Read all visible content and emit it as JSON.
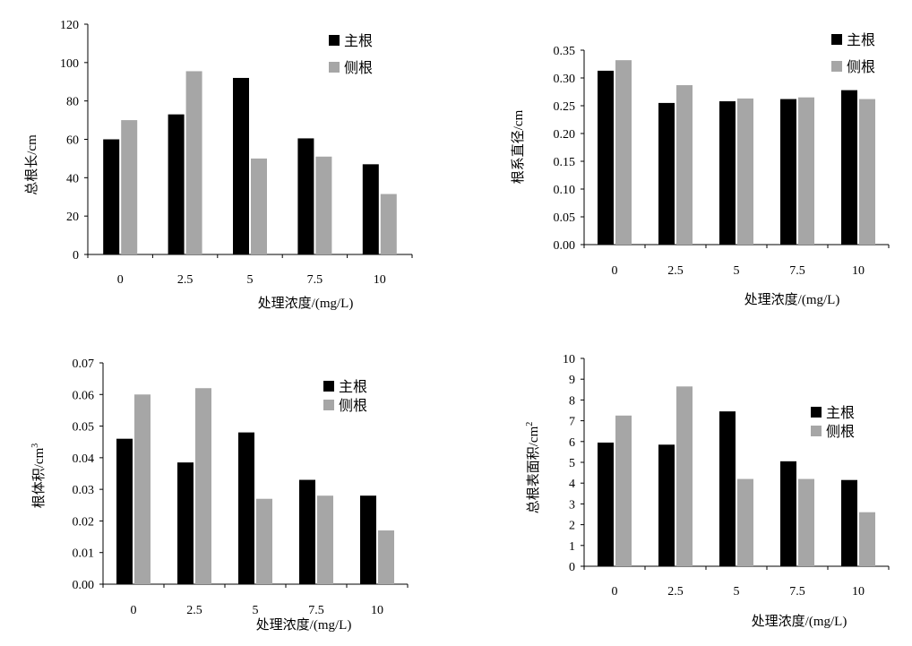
{
  "colors": {
    "main": "#000000",
    "lateral": "#a6a6a6",
    "axis": "#000000"
  },
  "chart_data": [
    {
      "type": "bar",
      "categories": [
        "0",
        "2.5",
        "5",
        "7.5",
        "10"
      ],
      "series": [
        {
          "name": "主根",
          "values": [
            60,
            73,
            92,
            60.5,
            47
          ]
        },
        {
          "name": "侧根",
          "values": [
            70,
            95.5,
            50,
            51,
            31.5
          ]
        }
      ],
      "ylabel": "总根长/cm",
      "xlabel": "处理浓度/(mg/L)",
      "ylim": [
        0,
        120
      ],
      "yticks": [
        "0",
        "20",
        "40",
        "60",
        "80",
        "100",
        "120"
      ],
      "legend": "top-right",
      "grid": false
    },
    {
      "type": "bar",
      "categories": [
        "0",
        "2.5",
        "5",
        "7.5",
        "10"
      ],
      "series": [
        {
          "name": "主根",
          "values": [
            0.313,
            0.255,
            0.258,
            0.262,
            0.278
          ]
        },
        {
          "name": "侧根",
          "values": [
            0.332,
            0.287,
            0.263,
            0.265,
            0.262
          ]
        }
      ],
      "ylabel": "根系直径/cm",
      "xlabel": "处理浓度/(mg/L)",
      "ylim": [
        0,
        0.35
      ],
      "yticks": [
        "0.00",
        "0.05",
        "0.10",
        "0.15",
        "0.20",
        "0.25",
        "0.30",
        "0.35"
      ],
      "legend": "top-right",
      "grid": false
    },
    {
      "type": "bar",
      "categories": [
        "0",
        "2.5",
        "5",
        "7.5",
        "10"
      ],
      "series": [
        {
          "name": "主根",
          "values": [
            0.046,
            0.0385,
            0.048,
            0.033,
            0.028
          ]
        },
        {
          "name": "侧根",
          "values": [
            0.06,
            0.062,
            0.027,
            0.028,
            0.017
          ]
        }
      ],
      "ylabel": "根体积/cm",
      "ylabel_sup": "3",
      "xlabel": "处理浓度/(mg/L)",
      "ylim": [
        0,
        0.07
      ],
      "yticks": [
        "0.00",
        "0.01",
        "0.02",
        "0.03",
        "0.04",
        "0.05",
        "0.06",
        "0.07"
      ],
      "legend": "top-right",
      "grid": false
    },
    {
      "type": "bar",
      "categories": [
        "0",
        "2.5",
        "5",
        "7.5",
        "10"
      ],
      "series": [
        {
          "name": "主根",
          "values": [
            5.95,
            5.85,
            7.45,
            5.05,
            4.15
          ]
        },
        {
          "name": "侧根",
          "values": [
            7.25,
            8.65,
            4.2,
            4.2,
            2.6
          ]
        }
      ],
      "ylabel": "总根表面积/cm",
      "ylabel_sup": "2",
      "xlabel": "处理浓度/(mg/L)",
      "ylim": [
        0,
        10
      ],
      "yticks": [
        "0",
        "1",
        "2",
        "3",
        "4",
        "5",
        "6",
        "7",
        "8",
        "9",
        "10"
      ],
      "legend": "top-right",
      "grid": false
    }
  ]
}
